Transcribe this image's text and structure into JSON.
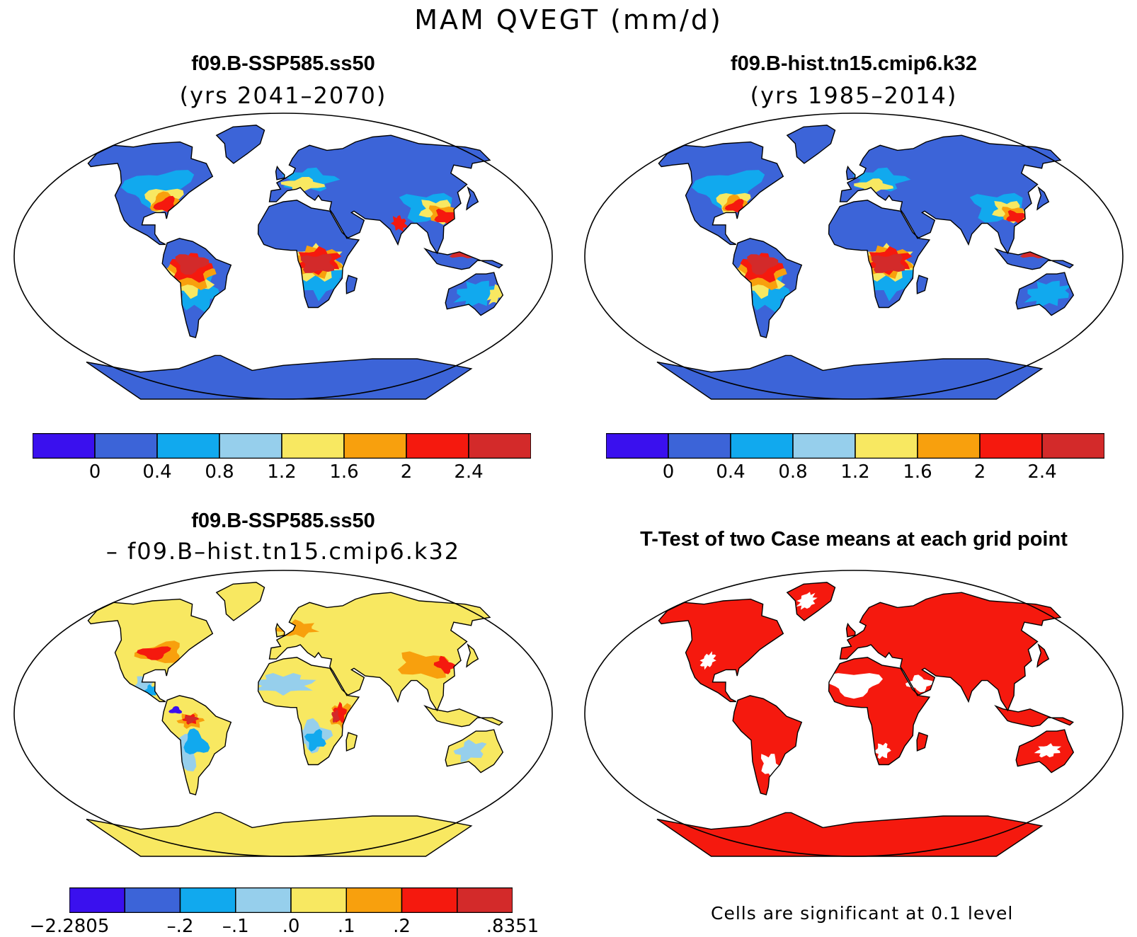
{
  "figure": {
    "title": "MAM QVEGT (mm/d)"
  },
  "panels": [
    {
      "id": "top-left",
      "title": "f09.B-SSP585.ss50",
      "subtitle": "(yrs 2041–2070)",
      "map_kind": "absolute-future"
    },
    {
      "id": "top-right",
      "title": "f09.B-hist.tn15.cmip6.k32",
      "subtitle": "(yrs 1985–2014)",
      "map_kind": "absolute-hist"
    },
    {
      "id": "bottom-left",
      "title": "f09.B-SSP585.ss50",
      "subtitle": "– f09.B–hist.tn15.cmip6.k32",
      "map_kind": "difference"
    },
    {
      "id": "bottom-right",
      "title": "T-Test of two Case means at each grid point",
      "subtitle": "",
      "map_kind": "significance"
    }
  ],
  "colorbars": {
    "absolute": {
      "colors": [
        "#3a10ee",
        "#3c64d8",
        "#11a9ee",
        "#96cfec",
        "#f8e861",
        "#f8a00d",
        "#f5190e",
        "#d32a2a"
      ],
      "labels": [
        "0",
        "0.4",
        "0.8",
        "1.2",
        "1.6",
        "2",
        "2.4"
      ]
    },
    "difference": {
      "colors": [
        "#3a10ee",
        "#3c64d8",
        "#11a9ee",
        "#96cfec",
        "#f8e861",
        "#f8a00d",
        "#f5190e",
        "#d32a2a"
      ],
      "labels": [
        "−2.2805",
        "–.2",
        "–.1",
        ".0",
        ".1",
        ".2",
        ".8351"
      ]
    }
  },
  "significance_note": "Cells are significant at 0.1 level",
  "map_colors": {
    "ocean": "#ffffff",
    "significance": "#f5190e"
  }
}
